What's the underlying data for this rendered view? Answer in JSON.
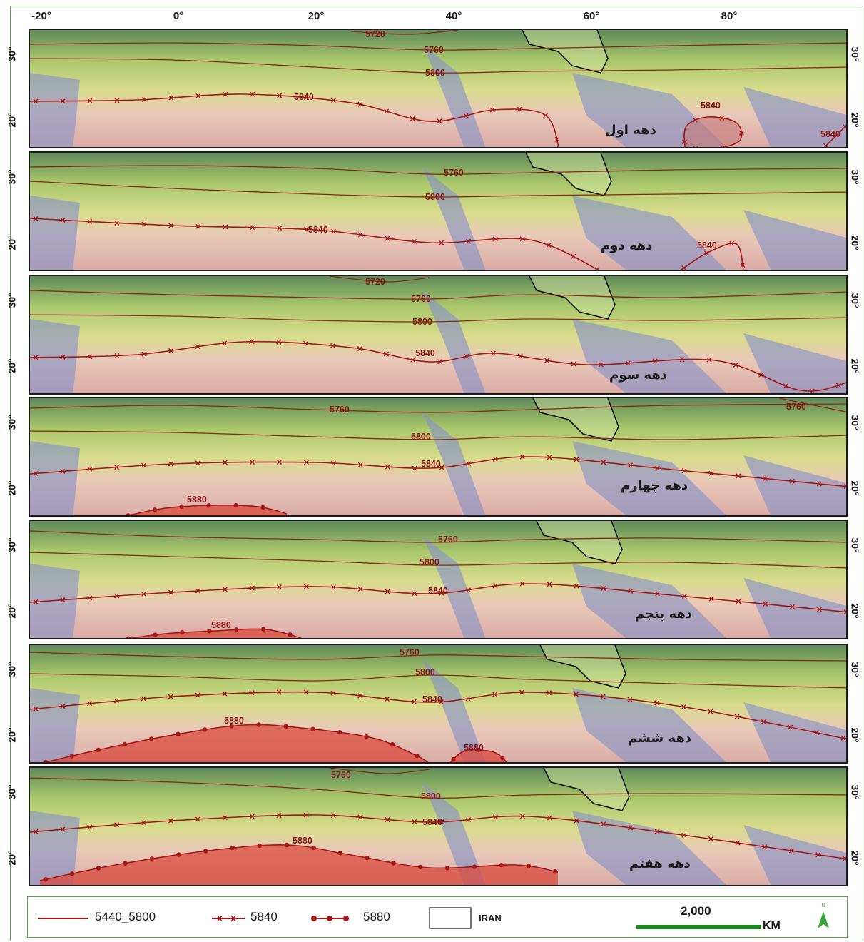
{
  "longitude_labels": [
    "-20°",
    "0°",
    "20°",
    "40°",
    "60°",
    "80°"
  ],
  "latitude_labels": [
    "30°",
    "20°"
  ],
  "panels": [
    {
      "decade": "دهه اول",
      "contours": [
        {
          "label": "5720",
          "kind": "plain"
        },
        {
          "label": "5760",
          "kind": "plain"
        },
        {
          "label": "5800",
          "kind": "plain"
        },
        {
          "label": "5840",
          "kind": "cross"
        },
        {
          "label": "5840",
          "kind": "cross"
        },
        {
          "label": "5840",
          "kind": "cross"
        }
      ]
    },
    {
      "decade": "دهه دوم",
      "contours": [
        {
          "label": "5760",
          "kind": "plain"
        },
        {
          "label": "5800",
          "kind": "plain"
        },
        {
          "label": "5840",
          "kind": "cross"
        },
        {
          "label": "5840",
          "kind": "cross"
        }
      ]
    },
    {
      "decade": "دهه سوم",
      "contours": [
        {
          "label": "5720",
          "kind": "plain"
        },
        {
          "label": "5760",
          "kind": "plain"
        },
        {
          "label": "5800",
          "kind": "plain"
        },
        {
          "label": "5840",
          "kind": "cross"
        }
      ]
    },
    {
      "decade": "دهه چهارم",
      "contours": [
        {
          "label": "5760",
          "kind": "plain"
        },
        {
          "label": "5760",
          "kind": "plain"
        },
        {
          "label": "5800",
          "kind": "plain"
        },
        {
          "label": "5840",
          "kind": "cross"
        },
        {
          "label": "5880",
          "kind": "dot"
        }
      ]
    },
    {
      "decade": "دهه پنجم",
      "contours": [
        {
          "label": "5760",
          "kind": "plain"
        },
        {
          "label": "5800",
          "kind": "plain"
        },
        {
          "label": "5840",
          "kind": "cross"
        },
        {
          "label": "5880",
          "kind": "dot"
        }
      ]
    },
    {
      "decade": "دهه ششم",
      "contours": [
        {
          "label": "5760",
          "kind": "plain"
        },
        {
          "label": "5800",
          "kind": "plain"
        },
        {
          "label": "5840",
          "kind": "cross"
        },
        {
          "label": "5880",
          "kind": "dot"
        },
        {
          "label": "5880",
          "kind": "dot"
        }
      ]
    },
    {
      "decade": "دهه هفتم",
      "contours": [
        {
          "label": "5760",
          "kind": "plain"
        },
        {
          "label": "5800",
          "kind": "plain"
        },
        {
          "label": "5840",
          "kind": "cross"
        },
        {
          "label": "5880",
          "kind": "dot"
        }
      ]
    }
  ],
  "legend": {
    "line_plain": "5440_5800",
    "line_cross": "5840",
    "line_dot": "5880",
    "iran": "IRAN",
    "scale_value": "2,000",
    "scale_unit": "KM",
    "north_icon": "north-arrow-icon"
  },
  "colors": {
    "contour": "#a41818",
    "plain_contour": "#8a2a14",
    "legend_border": "#58a845",
    "scale_bar": "#1f8a1f"
  }
}
